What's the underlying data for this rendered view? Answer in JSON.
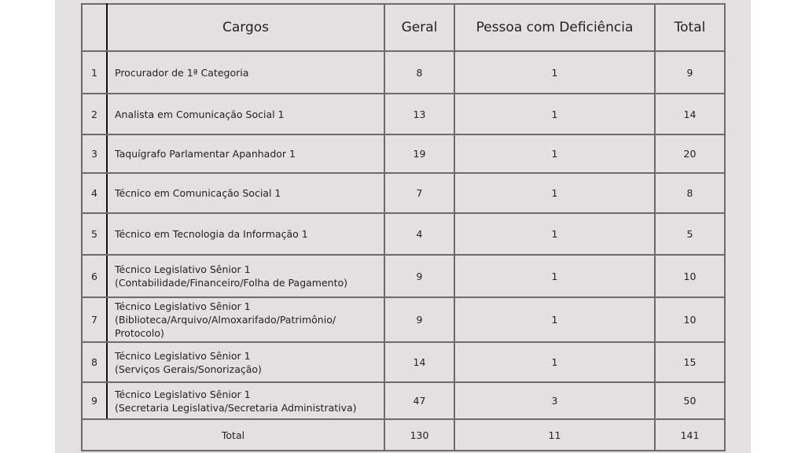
{
  "headers": {
    "num": "",
    "cargos": "Cargos",
    "geral": "Geral",
    "pcd": "Pessoa com Deficiência",
    "total": "Total"
  },
  "rows": [
    {
      "num": "1",
      "cargo": [
        "Procurador de 1ª Categoria"
      ],
      "geral": "8",
      "pcd": "1",
      "total": "9"
    },
    {
      "num": "2",
      "cargo": [
        "Analista em Comunicação Social 1"
      ],
      "geral": "13",
      "pcd": "1",
      "total": "14"
    },
    {
      "num": "3",
      "cargo": [
        "Taquígrafo Parlamentar Apanhador 1"
      ],
      "geral": "19",
      "pcd": "1",
      "total": "20"
    },
    {
      "num": "4",
      "cargo": [
        "Técnico em Comunicação Social 1"
      ],
      "geral": "7",
      "pcd": "1",
      "total": "8"
    },
    {
      "num": "5",
      "cargo": [
        "Técnico em Tecnologia da Informação 1"
      ],
      "geral": "4",
      "pcd": "1",
      "total": "5"
    },
    {
      "num": "6",
      "cargo": [
        "Técnico Legislativo Sênior 1",
        "(Contabilidade/Financeiro/Folha de Pagamento)"
      ],
      "geral": "9",
      "pcd": "1",
      "total": "10"
    },
    {
      "num": "7",
      "cargo": [
        "Técnico Legislativo Sênior 1",
        "(Biblioteca/Arquivo/Almoxarifado/Patrimônio/",
        "Protocolo)"
      ],
      "geral": "9",
      "pcd": "1",
      "total": "10"
    },
    {
      "num": "8",
      "cargo": [
        "Técnico Legislativo Sênior 1",
        "(Serviços Gerais/Sonorização)"
      ],
      "geral": "14",
      "pcd": "1",
      "total": "15"
    },
    {
      "num": "9",
      "cargo": [
        "Técnico Legislativo Sênior 1",
        "(Secretaria Legislativa/Secretaria Administrativa)"
      ],
      "geral": "47",
      "pcd": "3",
      "total": "50"
    }
  ],
  "footer": {
    "label": "Total",
    "geral": "130",
    "pcd": "11",
    "total": "141"
  }
}
